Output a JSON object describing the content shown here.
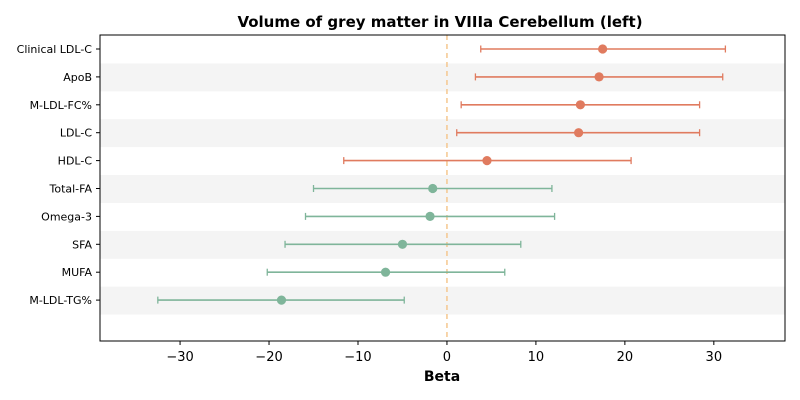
{
  "chart_data": {
    "type": "forest",
    "title": "Volume of grey matter in VIIIa Cerebellum (left)",
    "xlabel": "Beta",
    "ylabel": "",
    "xlim": [
      -39,
      38
    ],
    "xticks": [
      -30,
      -20,
      -10,
      0,
      10,
      20,
      30
    ],
    "xtick_labels": [
      "−30",
      "−20",
      "−10",
      "0",
      "10",
      "20",
      "30"
    ],
    "reference_line": 0,
    "grid": false,
    "row_stripes": true,
    "colors": {
      "positive": "#e07b5f",
      "negative": "#7fb59a",
      "reference": "#f5c78f",
      "stripe": "#f4f4f4"
    },
    "rows": [
      {
        "label": "Clinical LDL-C",
        "beta": 17.5,
        "ci_low": 3.8,
        "ci_high": 31.3
      },
      {
        "label": "ApoB",
        "beta": 17.1,
        "ci_low": 3.2,
        "ci_high": 31.0
      },
      {
        "label": "M-LDL-FC%",
        "beta": 15.0,
        "ci_low": 1.6,
        "ci_high": 28.4
      },
      {
        "label": "LDL-C",
        "beta": 14.8,
        "ci_low": 1.1,
        "ci_high": 28.4
      },
      {
        "label": "HDL-C",
        "beta": 4.5,
        "ci_low": -11.6,
        "ci_high": 20.7
      },
      {
        "label": "Total-FA",
        "beta": -1.6,
        "ci_low": -15.0,
        "ci_high": 11.8
      },
      {
        "label": "Omega-3",
        "beta": -1.9,
        "ci_low": -15.9,
        "ci_high": 12.1
      },
      {
        "label": "SFA",
        "beta": -5.0,
        "ci_low": -18.2,
        "ci_high": 8.3
      },
      {
        "label": "MUFA",
        "beta": -6.9,
        "ci_low": -20.2,
        "ci_high": 6.5
      },
      {
        "label": "M-LDL-TG%",
        "beta": -18.6,
        "ci_low": -32.5,
        "ci_high": -4.8
      }
    ]
  }
}
